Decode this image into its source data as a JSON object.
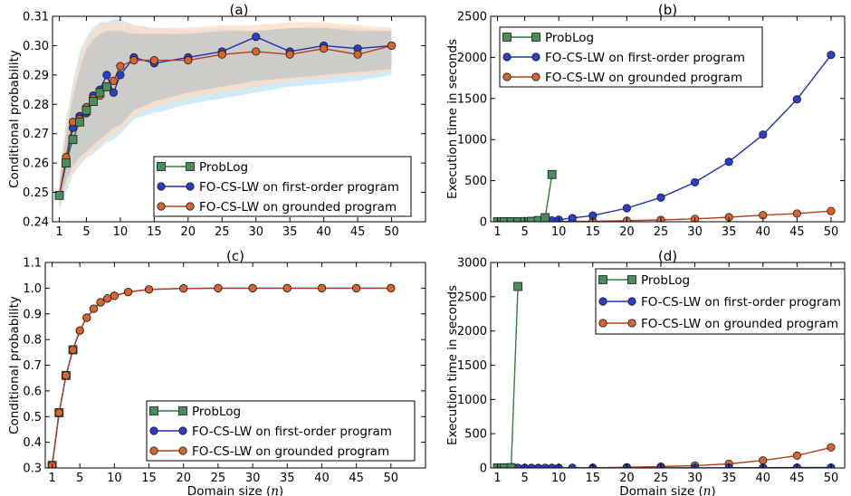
{
  "figure": {
    "xlabel_prefix": "Domain size (",
    "xlabel_var": "n",
    "xlabel_suffix": ")"
  },
  "colors": {
    "problog": "#2e7d3a",
    "problog_fill": "#4a8c5c",
    "fo_first": "#1f2fb0",
    "fo_first_fill": "#2a3fc8",
    "fo_ground": "#b0401a",
    "fo_ground_fill": "#d8642e",
    "band_blue": "#bfe3f7",
    "band_orange": "#fcdcc2",
    "band_grey": "#c8c8c8"
  },
  "chart_data": [
    {
      "id": "a",
      "type": "line",
      "title": "(a)",
      "xlabel": "",
      "ylabel": "Conditional probability",
      "xlim": [
        0,
        55
      ],
      "ylim": [
        0.24,
        0.31
      ],
      "xticks": [
        1,
        5,
        10,
        15,
        20,
        25,
        30,
        35,
        40,
        45,
        50
      ],
      "yticks": [
        0.24,
        0.25,
        0.26,
        0.27,
        0.28,
        0.29,
        0.3,
        0.31
      ],
      "ytick_labels": [
        "0.24",
        "0.25",
        "0.26",
        "0.27",
        "0.28",
        "0.29",
        "0.30",
        "0.31"
      ],
      "legend": {
        "position": "lower-right"
      },
      "bands": [
        {
          "color": "band_blue",
          "x": [
            1,
            2,
            3,
            4,
            5,
            6,
            7,
            8,
            9,
            10,
            12,
            15,
            20,
            25,
            30,
            35,
            40,
            45,
            50
          ],
          "lower": [
            0.244,
            0.25,
            0.256,
            0.259,
            0.262,
            0.263,
            0.265,
            0.267,
            0.268,
            0.27,
            0.275,
            0.277,
            0.28,
            0.282,
            0.284,
            0.286,
            0.287,
            0.288,
            0.29
          ],
          "upper": [
            0.254,
            0.275,
            0.287,
            0.298,
            0.303,
            0.306,
            0.308,
            0.308,
            0.309,
            0.309,
            0.307,
            0.306,
            0.305,
            0.306,
            0.305,
            0.306,
            0.307,
            0.306,
            0.305
          ]
        },
        {
          "color": "band_orange",
          "x": [
            1,
            2,
            3,
            4,
            5,
            6,
            7,
            8,
            9,
            10,
            12,
            15,
            20,
            25,
            30,
            35,
            40,
            45,
            50
          ],
          "lower": [
            0.245,
            0.252,
            0.257,
            0.26,
            0.262,
            0.264,
            0.266,
            0.268,
            0.27,
            0.271,
            0.276,
            0.279,
            0.282,
            0.284,
            0.286,
            0.288,
            0.289,
            0.29,
            0.291
          ],
          "upper": [
            0.254,
            0.274,
            0.286,
            0.296,
            0.302,
            0.305,
            0.307,
            0.308,
            0.308,
            0.308,
            0.307,
            0.306,
            0.306,
            0.307,
            0.307,
            0.308,
            0.308,
            0.307,
            0.306
          ]
        },
        {
          "color": "band_grey",
          "x": [
            1,
            2,
            3,
            4,
            5,
            6,
            7,
            8,
            9,
            10,
            12,
            15,
            20,
            25,
            30,
            35,
            40,
            45,
            50
          ],
          "lower": [
            0.246,
            0.254,
            0.259,
            0.262,
            0.264,
            0.266,
            0.268,
            0.27,
            0.272,
            0.273,
            0.278,
            0.281,
            0.284,
            0.286,
            0.288,
            0.289,
            0.29,
            0.291,
            0.292
          ],
          "upper": [
            0.253,
            0.27,
            0.282,
            0.292,
            0.299,
            0.302,
            0.304,
            0.305,
            0.305,
            0.305,
            0.304,
            0.304,
            0.304,
            0.305,
            0.305,
            0.306,
            0.306,
            0.305,
            0.305
          ]
        }
      ],
      "series": [
        {
          "name": "ProbLog",
          "marker": "square",
          "color": "problog",
          "x": [
            1,
            2,
            3,
            4,
            5,
            6,
            7,
            8
          ],
          "y": [
            0.249,
            0.26,
            0.268,
            0.274,
            0.278,
            0.281,
            0.284,
            0.286
          ]
        },
        {
          "name": "FO-CS-LW on first-order program",
          "marker": "circle",
          "color": "fo_first",
          "x": [
            1,
            2,
            3,
            4,
            5,
            6,
            7,
            8,
            9,
            10,
            12,
            15,
            20,
            25,
            30,
            35,
            40,
            45,
            50
          ],
          "y": [
            0.249,
            0.26,
            0.272,
            0.276,
            0.277,
            0.283,
            0.285,
            0.29,
            0.284,
            0.29,
            0.296,
            0.294,
            0.296,
            0.298,
            0.303,
            0.298,
            0.3,
            0.299,
            0.3
          ]
        },
        {
          "name": "FO-CS-LW on grounded program",
          "marker": "circle",
          "color": "fo_ground",
          "x": [
            1,
            2,
            3,
            4,
            5,
            6,
            7,
            8,
            9,
            10,
            12,
            15,
            20,
            25,
            30,
            35,
            40,
            45,
            50
          ],
          "y": [
            0.249,
            0.262,
            0.274,
            0.275,
            0.279,
            0.282,
            0.283,
            0.286,
            0.288,
            0.293,
            0.295,
            0.295,
            0.295,
            0.297,
            0.298,
            0.297,
            0.299,
            0.297,
            0.3
          ]
        }
      ]
    },
    {
      "id": "b",
      "type": "line",
      "title": "(b)",
      "xlabel": "",
      "ylabel": "Execution time in seconds",
      "xlim": [
        0,
        52
      ],
      "ylim": [
        0,
        2500
      ],
      "xticks": [
        1,
        5,
        10,
        15,
        20,
        25,
        30,
        35,
        40,
        45,
        50
      ],
      "yticks": [
        0,
        500,
        1000,
        1500,
        2000,
        2500
      ],
      "ytick_labels": [
        "0",
        "500",
        "1000",
        "1500",
        "2000",
        "2500"
      ],
      "legend": {
        "position": "upper-left"
      },
      "series": [
        {
          "name": "ProbLog",
          "marker": "square",
          "color": "problog",
          "x": [
            1,
            2,
            3,
            4,
            5,
            6,
            7,
            8,
            9
          ],
          "y": [
            0,
            0,
            0,
            1,
            2,
            5,
            15,
            50,
            575
          ]
        },
        {
          "name": "FO-CS-LW on first-order program",
          "marker": "circle",
          "color": "fo_first",
          "x": [
            1,
            2,
            3,
            4,
            5,
            6,
            7,
            8,
            9,
            10,
            12,
            15,
            20,
            25,
            30,
            35,
            40,
            45,
            50
          ],
          "y": [
            2,
            3,
            4,
            5,
            7,
            9,
            11,
            14,
            17,
            25,
            45,
            75,
            165,
            295,
            480,
            730,
            1060,
            1490,
            2030
          ]
        },
        {
          "name": "FO-CS-LW on grounded program",
          "marker": "circle",
          "color": "fo_ground",
          "x": [
            1,
            2,
            3,
            4,
            5,
            6,
            7,
            8,
            9,
            10,
            12,
            15,
            20,
            25,
            30,
            35,
            40,
            45,
            50
          ],
          "y": [
            1,
            1,
            1,
            1,
            2,
            2,
            2,
            2,
            3,
            3,
            4,
            6,
            13,
            22,
            35,
            55,
            80,
            100,
            130
          ]
        }
      ]
    },
    {
      "id": "c",
      "type": "line",
      "title": "(c)",
      "xlabel": "Domain size (n)",
      "ylabel": "Conditional probability",
      "xlim": [
        0,
        55
      ],
      "ylim": [
        0.3,
        1.1
      ],
      "xticks": [
        1,
        5,
        10,
        15,
        20,
        25,
        30,
        35,
        40,
        45,
        50
      ],
      "yticks": [
        0.3,
        0.4,
        0.5,
        0.6,
        0.7,
        0.8,
        0.9,
        1.0,
        1.1
      ],
      "ytick_labels": [
        "0.3",
        "0.4",
        "0.5",
        "0.6",
        "0.7",
        "0.8",
        "0.9",
        "1.0",
        "1.1"
      ],
      "legend": {
        "position": "lower-right"
      },
      "series": [
        {
          "name": "ProbLog",
          "marker": "square",
          "color": "problog",
          "x": [
            1,
            2,
            3,
            4
          ],
          "y": [
            0.31,
            0.515,
            0.66,
            0.76
          ]
        },
        {
          "name": "FO-CS-LW on first-order program",
          "marker": "circle",
          "color": "fo_first",
          "x": [
            1,
            2,
            3,
            4,
            5,
            6,
            7,
            8,
            9,
            10,
            12,
            15,
            20,
            25,
            30,
            35,
            40,
            45,
            50
          ],
          "y": [
            0.31,
            0.515,
            0.66,
            0.76,
            0.835,
            0.885,
            0.92,
            0.945,
            0.96,
            0.97,
            0.985,
            0.995,
            0.999,
            1.0,
            1.0,
            1.0,
            1.0,
            1.0,
            1.0
          ]
        },
        {
          "name": "FO-CS-LW on grounded program",
          "marker": "circle",
          "color": "fo_ground",
          "x": [
            1,
            2,
            3,
            4,
            5,
            6,
            7,
            8,
            9,
            10,
            12,
            15,
            20,
            25,
            30,
            35,
            40,
            45,
            50
          ],
          "y": [
            0.31,
            0.515,
            0.66,
            0.76,
            0.835,
            0.885,
            0.92,
            0.945,
            0.96,
            0.97,
            0.985,
            0.995,
            0.999,
            1.0,
            1.0,
            1.0,
            1.0,
            1.0,
            1.0
          ]
        }
      ]
    },
    {
      "id": "d",
      "type": "line",
      "title": "(d)",
      "xlabel": "Domain size (n)",
      "ylabel": "Execution time in seconds",
      "xlim": [
        0,
        52
      ],
      "ylim": [
        0,
        3000
      ],
      "xticks": [
        1,
        5,
        10,
        15,
        20,
        25,
        30,
        35,
        40,
        45,
        50
      ],
      "yticks": [
        0,
        500,
        1000,
        1500,
        2000,
        2500,
        3000
      ],
      "ytick_labels": [
        "0",
        "500",
        "1000",
        "1500",
        "2000",
        "2500",
        "3000"
      ],
      "legend": {
        "position": "upper-right"
      },
      "series": [
        {
          "name": "ProbLog",
          "marker": "square",
          "color": "problog",
          "x": [
            1,
            2,
            3,
            4
          ],
          "y": [
            0,
            1,
            5,
            2650
          ]
        },
        {
          "name": "FO-CS-LW on first-order program",
          "marker": "circle",
          "color": "fo_first",
          "x": [
            1,
            2,
            3,
            4,
            5,
            6,
            7,
            8,
            9,
            10,
            12,
            15,
            20,
            25,
            30,
            35,
            40,
            45,
            50
          ],
          "y": [
            0,
            0,
            0,
            0,
            0,
            0,
            0,
            0,
            0,
            0,
            0,
            0,
            1,
            1,
            2,
            3,
            4,
            5,
            6
          ]
        },
        {
          "name": "FO-CS-LW on grounded program",
          "marker": "circle",
          "color": "fo_ground",
          "x": [
            1,
            2,
            3,
            4,
            5,
            6,
            7,
            8,
            9,
            10,
            12,
            15,
            20,
            25,
            30,
            35,
            40,
            45,
            50
          ],
          "y": [
            0,
            0,
            0,
            0,
            0,
            0,
            0,
            0,
            1,
            1,
            2,
            3,
            10,
            20,
            35,
            60,
            110,
            180,
            300
          ]
        }
      ]
    }
  ]
}
